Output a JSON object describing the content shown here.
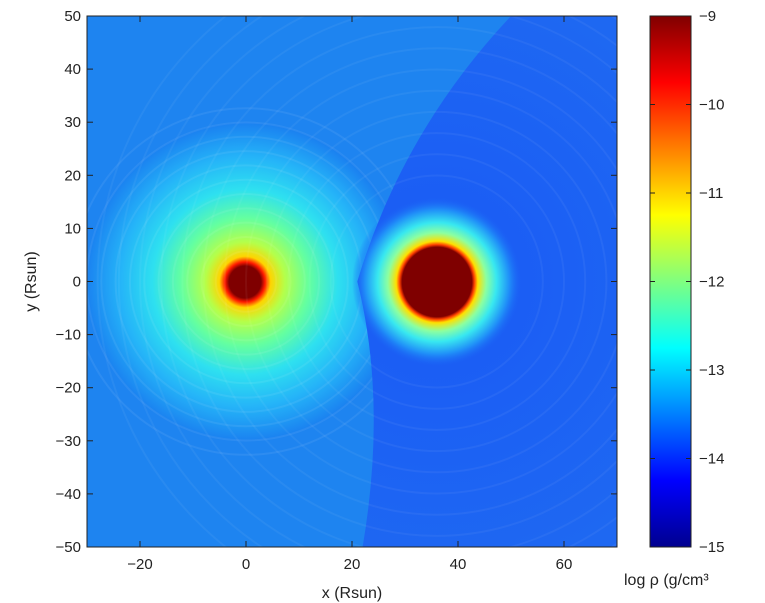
{
  "chart_data": {
    "type": "heatmap",
    "xlabel": "x (Rsun)",
    "ylabel": "y (Rsun)",
    "xlim": [
      -30,
      70
    ],
    "ylim": [
      -50,
      50
    ],
    "x_ticks": [
      -20,
      0,
      20,
      40,
      60
    ],
    "x_tick_labels": [
      "−20",
      "0",
      "20",
      "40",
      "60"
    ],
    "y_ticks": [
      50,
      40,
      30,
      20,
      10,
      0,
      -10,
      -20,
      -30,
      -40,
      -50
    ],
    "y_tick_labels": [
      "50",
      "40",
      "30",
      "20",
      "10",
      "0",
      "−10",
      "−20",
      "−30",
      "−40",
      "−50"
    ],
    "colorbar": {
      "label": "log ρ (g/cm³",
      "range": [
        -15,
        -9
      ],
      "ticks": [
        -9,
        -10,
        -11,
        -12,
        -13,
        -14,
        -15
      ],
      "tick_labels": [
        "−9",
        "−10",
        "−11",
        "−12",
        "−13",
        "−14",
        "−15"
      ],
      "colormap": "jet"
    },
    "features": {
      "primary_star": {
        "x": 0,
        "y": 0,
        "core_radius": 3,
        "envelope_radius": 30
      },
      "secondary_star": {
        "x": 36,
        "y": 0,
        "core_radius": 7,
        "envelope_radius": 16
      },
      "shock_boundary": {
        "x_at_y0": 21,
        "x_at_top": 50,
        "x_at_bottom": 22
      }
    }
  }
}
